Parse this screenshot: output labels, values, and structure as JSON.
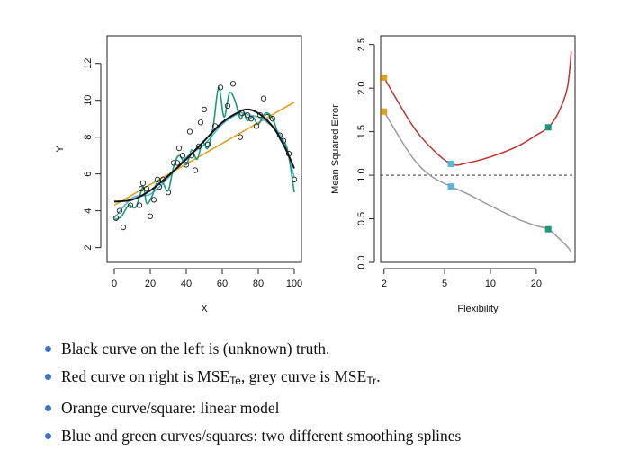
{
  "chart_data": [
    {
      "type": "scatter",
      "title": "",
      "xlabel": "X",
      "ylabel": "Y",
      "xlim": [
        -4,
        104
      ],
      "ylim": [
        1.2,
        13.5
      ],
      "xticks": [
        0,
        20,
        40,
        60,
        80,
        100
      ],
      "yticks": [
        2,
        4,
        6,
        8,
        10,
        12
      ],
      "points": {
        "x": [
          1,
          3,
          5,
          9,
          14,
          15,
          16,
          18,
          20,
          22,
          24,
          25,
          27,
          30,
          33,
          35,
          36,
          38,
          40,
          42,
          43,
          45,
          47,
          48,
          50,
          52,
          56,
          59,
          63,
          66,
          70,
          71,
          74,
          76,
          79,
          81,
          83,
          85,
          88,
          92,
          94,
          97,
          100
        ],
        "y": [
          3.6,
          4.0,
          3.1,
          4.3,
          4.3,
          5.2,
          5.5,
          5.2,
          3.7,
          4.6,
          5.7,
          5.3,
          5.7,
          5.0,
          6.6,
          6.6,
          7.4,
          7.0,
          6.5,
          8.3,
          7.0,
          6.2,
          7.5,
          8.8,
          9.5,
          7.6,
          8.6,
          10.7,
          9.7,
          10.9,
          8.0,
          9.3,
          9.2,
          9.0,
          8.6,
          9.2,
          10.1,
          9.1,
          9.0,
          8.1,
          7.8,
          7.1,
          5.7
        ]
      },
      "series": [
        {
          "name": "truth",
          "color": "#111111",
          "x": [
            0,
            10,
            20,
            30,
            40,
            50,
            60,
            70,
            75,
            80,
            85,
            90,
            95,
            100
          ],
          "y": [
            4.5,
            4.6,
            5.1,
            5.9,
            6.8,
            7.8,
            8.8,
            9.4,
            9.5,
            9.3,
            8.9,
            8.3,
            7.4,
            6.3
          ]
        },
        {
          "name": "linear",
          "color": "#e0a020",
          "x": [
            0,
            100
          ],
          "y": [
            4.3,
            9.9
          ]
        },
        {
          "name": "smoothing spline (blue)",
          "color": "#5ab4d8",
          "x": [
            0,
            10,
            20,
            30,
            40,
            50,
            60,
            70,
            75,
            80,
            85,
            90,
            95,
            100
          ],
          "y": [
            3.6,
            4.7,
            4.9,
            5.8,
            6.9,
            7.6,
            8.7,
            9.3,
            9.2,
            9.1,
            8.8,
            8.4,
            7.6,
            5.8
          ]
        },
        {
          "name": "smoothing spline (green)",
          "color": "#1a9a78",
          "x": [
            0,
            4,
            8,
            12,
            16,
            18,
            21,
            24,
            27,
            30,
            33,
            36,
            40,
            43,
            46,
            49,
            52,
            55,
            58,
            61,
            64,
            67,
            70,
            72,
            74,
            77,
            80,
            84,
            88,
            92,
            96,
            100
          ],
          "y": [
            3.5,
            3.7,
            4.3,
            4.2,
            5.3,
            4.4,
            4.8,
            5.6,
            5.5,
            5.1,
            6.4,
            7.0,
            6.5,
            7.3,
            6.8,
            7.7,
            7.4,
            8.6,
            10.7,
            9.1,
            10.4,
            10.0,
            9.0,
            9.3,
            8.9,
            9.1,
            8.7,
            9.3,
            9.0,
            7.9,
            7.4,
            5.0
          ]
        }
      ]
    },
    {
      "type": "line",
      "title": "",
      "xlabel": "Flexibility",
      "ylabel": "Mean Squared Error",
      "xscale": "log",
      "xlim": [
        1.9,
        36
      ],
      "ylim": [
        0,
        2.6
      ],
      "xticks": [
        2,
        5,
        10,
        20
      ],
      "yticks": [
        0.0,
        0.5,
        1.0,
        1.5,
        2.0,
        2.5
      ],
      "reference_line": {
        "y": 1.0,
        "style": "dashed"
      },
      "series": [
        {
          "name": "MSE test",
          "color": "#c0332d",
          "x": [
            2,
            3,
            4,
            5.5,
            7,
            10,
            15,
            20,
            24,
            28,
            32,
            34
          ],
          "y": [
            2.12,
            1.6,
            1.33,
            1.13,
            1.14,
            1.21,
            1.33,
            1.46,
            1.55,
            1.72,
            2.0,
            2.42
          ]
        },
        {
          "name": "MSE train",
          "color": "#9a9a9a",
          "x": [
            2,
            3,
            4,
            5.5,
            7,
            10,
            15,
            20,
            24,
            28,
            32,
            34
          ],
          "y": [
            1.73,
            1.23,
            1.0,
            0.87,
            0.79,
            0.65,
            0.5,
            0.42,
            0.38,
            0.28,
            0.18,
            0.12
          ]
        }
      ],
      "markers": [
        {
          "x": 2,
          "y": 2.12,
          "color": "#e0a020"
        },
        {
          "x": 2,
          "y": 1.73,
          "color": "#e0a020"
        },
        {
          "x": 5.5,
          "y": 1.13,
          "color": "#5ab4d8"
        },
        {
          "x": 5.5,
          "y": 0.87,
          "color": "#5ab4d8"
        },
        {
          "x": 24,
          "y": 1.55,
          "color": "#1a9a78"
        },
        {
          "x": 24,
          "y": 0.38,
          "color": "#1a9a78"
        }
      ]
    }
  ],
  "bullets": [
    {
      "text": "Black curve on the left is (unknown) truth."
    },
    {
      "pre": "Red curve on right is MSE",
      "sub1": "Te",
      "mid": ", grey curve is MSE",
      "sub2": "Tr",
      "post": "."
    },
    {
      "text": "Orange curve/square: linear model"
    },
    {
      "text": "Blue and green curves/squares: two different smoothing splines"
    }
  ]
}
